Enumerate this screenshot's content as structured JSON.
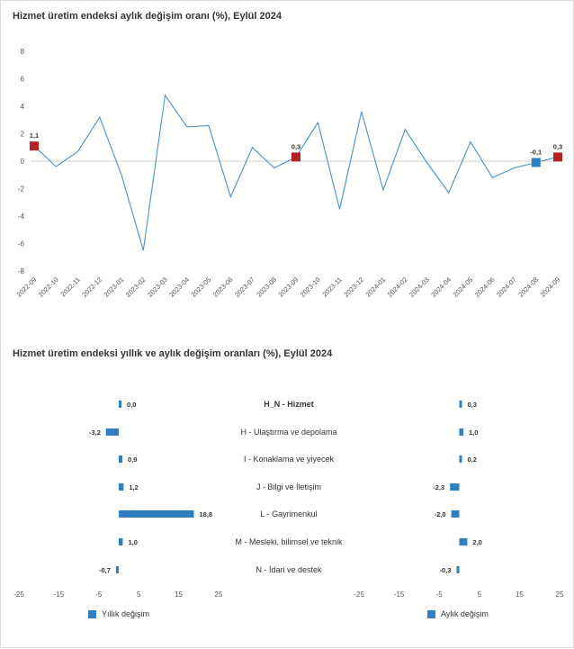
{
  "colors": {
    "line": "#4a90c8",
    "marker_red": "#b52025",
    "marker_blue": "#2f80c2",
    "bar": "#2f80c2",
    "zero_line": "#cccccc"
  },
  "chart_data": [
    {
      "type": "line",
      "title": "Hizmet üretim endeksi aylık değişim oranı (%), Eylül 2024",
      "ylim": [
        -8,
        8
      ],
      "yticks": [
        8,
        6,
        4,
        2,
        0,
        -2,
        -4,
        -6,
        -8
      ],
      "x": [
        "2022-09",
        "2022-10",
        "2022-11",
        "2022-12",
        "2023-01",
        "2023-02",
        "2023-03",
        "2023-04",
        "2023-05",
        "2023-06",
        "2023-07",
        "2023-08",
        "2023-09",
        "2023-10",
        "2023-11",
        "2023-12",
        "2024-01",
        "2024-02",
        "2024-03",
        "2024-04",
        "2024-05",
        "2024-06",
        "2024-07",
        "2024-08",
        "2024-09"
      ],
      "values": [
        1.1,
        -0.4,
        0.7,
        3.2,
        -1.0,
        -6.5,
        4.8,
        2.5,
        2.6,
        -2.6,
        1.0,
        -0.5,
        0.3,
        2.8,
        -3.5,
        3.6,
        -2.1,
        2.3,
        -0.1,
        -2.3,
        1.4,
        -1.2,
        -0.5,
        -0.1,
        0.3
      ],
      "highlights": [
        {
          "index": 0,
          "label": "1,1",
          "marker": "red"
        },
        {
          "index": 12,
          "label": "0,3",
          "marker": "red"
        },
        {
          "index": 23,
          "label": "-0,1",
          "marker": "blue"
        },
        {
          "index": 24,
          "label": "0,3",
          "marker": "red"
        }
      ]
    },
    {
      "type": "bar",
      "orientation": "horizontal",
      "title": "Hizmet üretim endeksi yıllık ve aylık değişim oranları (%), Eylül 2024",
      "categories": [
        "H_N - Hizmet",
        "H - Ulaştırma ve depolama",
        "I - Konaklama ve yiyecek",
        "J - Bilgi ve İletişim",
        "L - Gayrimenkul",
        "M - Mesleki, bilimsel ve teknik",
        "N - İdari ve destek"
      ],
      "xlim": [
        -25,
        25
      ],
      "xticks": [
        -25,
        -15,
        -5,
        5,
        15,
        25
      ],
      "series": [
        {
          "name": "Yıllık değişim",
          "values": [
            0.0,
            -3.2,
            0.9,
            1.2,
            18.8,
            1.0,
            -0.7
          ],
          "labels": [
            "0,0",
            "-3,2",
            "0,9",
            "1,2",
            "18,8",
            "1,0",
            "-0,7"
          ]
        },
        {
          "name": "Aylık değişim",
          "values": [
            0.3,
            1.0,
            0.2,
            -2.3,
            -2.0,
            2.0,
            -0.3
          ],
          "labels": [
            "0,3",
            "1,0",
            "0,2",
            "-2,3",
            "-2,0",
            "2,0",
            "-0,3"
          ]
        }
      ]
    }
  ]
}
